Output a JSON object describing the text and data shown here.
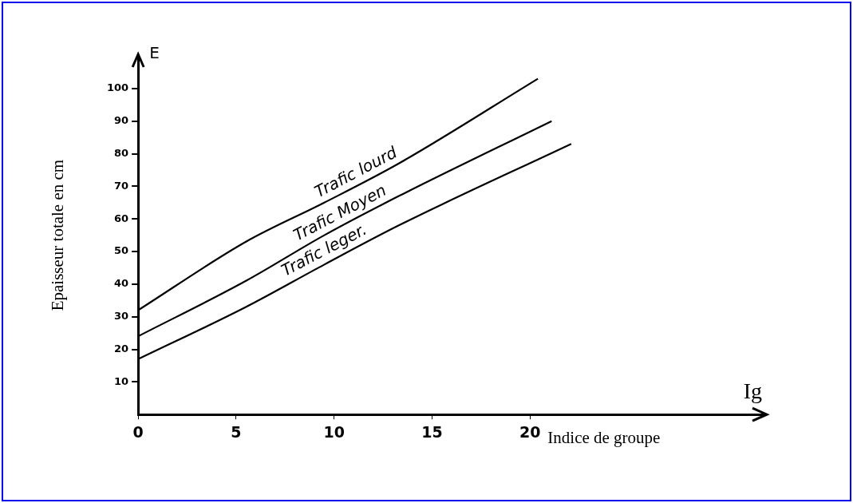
{
  "chart_data": {
    "type": "line",
    "xlabel": "Indice de groupe",
    "ylabel": "Epaisseur totale en cm",
    "annotations": [
      "E",
      "Ig"
    ],
    "xlim": [
      0,
      32
    ],
    "xticks": [
      0,
      5,
      10,
      15,
      20
    ],
    "ylim": [
      0,
      110
    ],
    "yticks": [
      10,
      20,
      30,
      40,
      50,
      60,
      70,
      80,
      90,
      100
    ],
    "grid": false,
    "legend": false,
    "marker": "none",
    "line_style": "solid",
    "series": [
      {
        "name": "Trafic lourd",
        "color": "#000000",
        "x": [
          0,
          5.5,
          9.5,
          13.3,
          20.4
        ],
        "values": [
          32,
          53,
          65,
          77,
          103
        ]
      },
      {
        "name": "Trafic Moyen",
        "color": "#000000",
        "x": [
          0,
          5.5,
          9.5,
          13.3,
          21.1
        ],
        "values": [
          24,
          41,
          55,
          67,
          90
        ]
      },
      {
        "name": "Trafic leger.",
        "color": "#000000",
        "x": [
          0,
          5.5,
          9.5,
          13.3,
          22.1
        ],
        "values": [
          17,
          33,
          46,
          58,
          83
        ]
      }
    ]
  }
}
